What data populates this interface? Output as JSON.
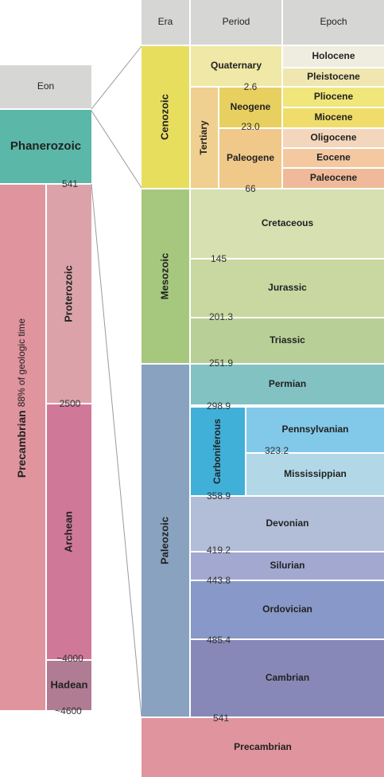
{
  "eon_column": {
    "header": "Eon",
    "phanerozoic": "Phanerozoic",
    "precambrian": "Precambrian",
    "precambrian_note": "88% of geologic time",
    "proterozoic": "Proterozoic",
    "archean": "Archean",
    "hadean": "Hadean",
    "boundaries": [
      "541",
      "2500",
      "~4000",
      "~4600"
    ]
  },
  "headers": [
    "Era",
    "Period",
    "Epoch"
  ],
  "eras": [
    "Cenozoic",
    "Mesozoic",
    "Paleozoic"
  ],
  "cenozoic_periods": [
    "Quaternary",
    "Tertiary",
    "Neogene",
    "Paleogene"
  ],
  "epochs": [
    "Holocene",
    "Pleistocene",
    "Pliocene",
    "Miocene",
    "Oligocene",
    "Eocene",
    "Paleocene"
  ],
  "periods": [
    "Cretaceous",
    "Jurassic",
    "Triassic",
    "Permian",
    "Carboniferous",
    "Pennsylvanian",
    "Mississippian",
    "Devonian",
    "Silurian",
    "Ordovician",
    "Cambrian"
  ],
  "bottom": "Precambrian",
  "boundaries": [
    "2.6",
    "23.0",
    "66",
    "145",
    "201.3",
    "251.9",
    "298.9",
    "323.2",
    "358.9",
    "419.2",
    "443.8",
    "485.4",
    "541"
  ]
}
